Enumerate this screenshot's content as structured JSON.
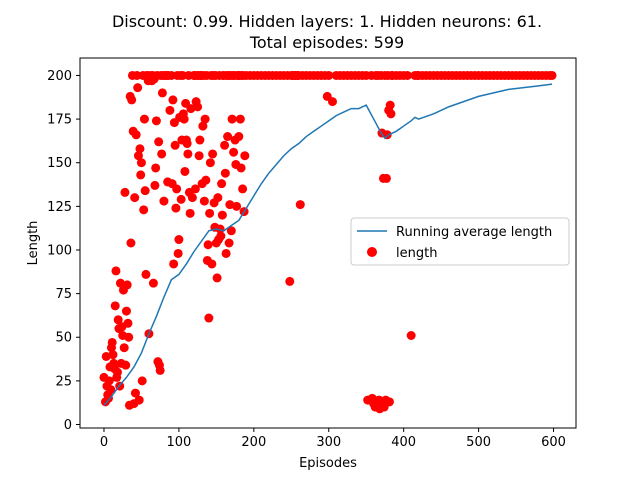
{
  "chart_data": {
    "type": "scatter",
    "title_line1": "Discount: 0.99. Hidden layers: 1. Hidden neurons: 61.",
    "title_line2": "Total episodes: 599",
    "xlabel": "Episodes",
    "ylabel": "Length",
    "xlim": [
      -32,
      630
    ],
    "ylim": [
      -2,
      210
    ],
    "xticks": [
      0,
      100,
      200,
      300,
      400,
      500,
      600
    ],
    "yticks": [
      0,
      25,
      50,
      75,
      100,
      125,
      150,
      175,
      200
    ],
    "grid": false,
    "legend_position": "center-right",
    "colors": {
      "line": "#1f77b4",
      "scatter": "#ff0000"
    },
    "series": [
      {
        "name": "Running average length",
        "type": "line",
        "x": [
          0,
          10,
          20,
          30,
          40,
          50,
          60,
          70,
          80,
          90,
          100,
          110,
          120,
          130,
          140,
          150,
          160,
          170,
          180,
          190,
          200,
          210,
          220,
          230,
          240,
          250,
          260,
          270,
          280,
          290,
          300,
          310,
          320,
          330,
          340,
          350,
          355,
          360,
          365,
          370,
          375,
          380,
          390,
          400,
          410,
          415,
          420,
          440,
          460,
          480,
          500,
          520,
          540,
          560,
          580,
          598
        ],
        "y": [
          11,
          16,
          22,
          27,
          33,
          41,
          52,
          62,
          73,
          83,
          86,
          92,
          99,
          105,
          111,
          112,
          111,
          114,
          117,
          124,
          131,
          138,
          144,
          149,
          154,
          158,
          161,
          165,
          168,
          171,
          174,
          177,
          179,
          181,
          181,
          183,
          179,
          175,
          171,
          167,
          164,
          166,
          168,
          171,
          174,
          176,
          175,
          178,
          182,
          185,
          188,
          190,
          192,
          193,
          194,
          195
        ]
      },
      {
        "name": "length",
        "type": "scatter",
        "x": [
          0,
          2,
          3,
          4,
          5,
          6,
          7,
          8,
          9,
          10,
          11,
          12,
          13,
          14,
          15,
          16,
          17,
          18,
          19,
          20,
          21,
          22,
          23,
          24,
          25,
          26,
          27,
          28,
          29,
          30,
          31,
          32,
          33,
          34,
          35,
          36,
          37,
          38,
          39,
          40,
          41,
          42,
          43,
          44,
          45,
          46,
          47,
          48,
          49,
          50,
          51,
          52,
          53,
          54,
          55,
          56,
          57,
          58,
          59,
          60,
          62,
          64,
          65,
          66,
          67,
          68,
          69,
          70,
          71,
          72,
          73,
          74,
          75,
          76,
          77,
          78,
          79,
          80,
          82,
          84,
          85,
          86,
          88,
          90,
          91,
          92,
          93,
          94,
          95,
          96,
          97,
          98,
          99,
          100,
          101,
          102,
          103,
          104,
          105,
          106,
          107,
          108,
          109,
          110,
          111,
          112,
          113,
          114,
          115,
          116,
          118,
          120,
          121,
          122,
          123,
          124,
          125,
          126,
          127,
          128,
          129,
          130,
          131,
          132,
          133,
          134,
          135,
          136,
          137,
          138,
          139,
          140,
          141,
          142,
          143,
          144,
          145,
          146,
          147,
          148,
          149,
          150,
          151,
          152,
          153,
          154,
          155,
          156,
          157,
          158,
          159,
          160,
          161,
          162,
          163,
          164,
          165,
          166,
          167,
          168,
          169,
          170,
          171,
          172,
          173,
          174,
          175,
          176,
          177,
          178,
          179,
          180,
          181,
          182,
          183,
          184,
          185,
          186,
          187,
          188,
          190,
          195,
          200,
          205,
          210,
          215,
          220,
          225,
          230,
          235,
          240,
          245,
          248,
          250,
          252,
          254,
          256,
          258,
          260,
          262,
          265,
          270,
          275,
          280,
          285,
          290,
          295,
          298,
          300,
          305,
          310,
          315,
          320,
          325,
          330,
          335,
          340,
          345,
          350,
          352,
          355,
          357,
          358,
          360,
          362,
          363,
          364,
          365,
          366,
          367,
          368,
          369,
          370,
          371,
          372,
          373,
          374,
          375,
          376,
          377,
          378,
          379,
          380,
          381,
          382,
          383,
          384,
          385,
          390,
          395,
          400,
          405,
          410,
          415,
          418,
          420,
          425,
          430,
          435,
          440,
          445,
          450,
          455,
          460,
          465,
          470,
          475,
          480,
          485,
          490,
          495,
          500,
          505,
          510,
          515,
          520,
          525,
          530,
          535,
          540,
          545,
          550,
          555,
          560,
          565,
          570,
          575,
          580,
          585,
          590,
          595,
          598
        ],
        "y": [
          27,
          13,
          39,
          22,
          17,
          15,
          25,
          33,
          20,
          44,
          47,
          40,
          35,
          32,
          68,
          88,
          27,
          30,
          60,
          55,
          22,
          81,
          35,
          56,
          51,
          77,
          44,
          133,
          34,
          65,
          80,
          58,
          50,
          11,
          188,
          104,
          186,
          200,
          168,
          12,
          130,
          18,
          166,
          200,
          193,
          154,
          14,
          158,
          143,
          150,
          25,
          200,
          123,
          175,
          134,
          86,
          200,
          200,
          197,
          52,
          200,
          197,
          200,
          81,
          198,
          137,
          147,
          174,
          200,
          36,
          162,
          34,
          31,
          200,
          155,
          190,
          200,
          128,
          200,
          200,
          139,
          200,
          180,
          200,
          138,
          186,
          92,
          173,
          160,
          124,
          135,
          200,
          98,
          106,
          176,
          200,
          129,
          163,
          200,
          178,
          175,
          145,
          184,
          163,
          161,
          155,
          200,
          133,
          121,
          181,
          130,
          200,
          200,
          135,
          185,
          200,
          182,
          200,
          154,
          163,
          200,
          200,
          138,
          171,
          200,
          128,
          175,
          140,
          200,
          94,
          103,
          61,
          121,
          150,
          200,
          92,
          155,
          200,
          127,
          113,
          200,
          104,
          84,
          130,
          106,
          200,
          112,
          108,
          138,
          120,
          200,
          200,
          160,
          144,
          98,
          200,
          165,
          200,
          104,
          126,
          200,
          111,
          175,
          200,
          156,
          200,
          163,
          149,
          125,
          200,
          200,
          165,
          200,
          175,
          147,
          200,
          135,
          200,
          122,
          154,
          200,
          200,
          200,
          200,
          200,
          200,
          200,
          200,
          200,
          200,
          200,
          200,
          82,
          200,
          200,
          200,
          200,
          200,
          200,
          126,
          200,
          200,
          200,
          200,
          200,
          200,
          200,
          188,
          200,
          185,
          200,
          200,
          200,
          200,
          200,
          200,
          200,
          200,
          200,
          14,
          14,
          200,
          15,
          12,
          10,
          200,
          13,
          10,
          200,
          14,
          9,
          11,
          200,
          167,
          12,
          141,
          10,
          200,
          14,
          141,
          166,
          200,
          180,
          13,
          183,
          178,
          200,
          200,
          200,
          200,
          200,
          200,
          51,
          200,
          200,
          200,
          200,
          200,
          200,
          200,
          200,
          200,
          200,
          200,
          200,
          200,
          200,
          200,
          200,
          200,
          200,
          200,
          200,
          200,
          200,
          200,
          200,
          200,
          200,
          200,
          200,
          200,
          200,
          200,
          200,
          200,
          200,
          200,
          200,
          200,
          200,
          200
        ]
      }
    ]
  }
}
